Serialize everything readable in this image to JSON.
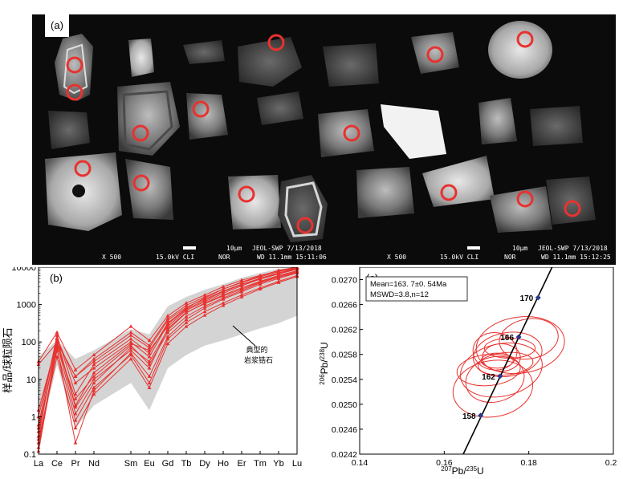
{
  "panel_a": {
    "label": "(a)",
    "footer_left": {
      "mag": "X 500",
      "kv": "15.0kV CLI",
      "scale": "10μm",
      "instrument": "JEOL-SWP 7/13/2018",
      "nor": "NOR",
      "wd": "WD 11.1mm 15:11:06"
    },
    "footer_right": {
      "mag": "X 500",
      "kv": "15.0kV CLI",
      "scale": "10μm",
      "instrument": "JEOL-SWP 7/13/2018",
      "nor": "NOR",
      "wd": "WD 11.1mm 15:12:25"
    },
    "colors": {
      "background": "#0b0b0b",
      "spot": "#e8322f"
    }
  },
  "chart_data": [
    {
      "type": "line",
      "label": "(b)",
      "ylabel": "样品/球粒陨石",
      "yscale": "log",
      "ylim": [
        0.1,
        10000
      ],
      "y_ticks": [
        "0.1",
        "1",
        "10",
        "100",
        "1000",
        "10000"
      ],
      "categories": [
        "La",
        "Ce",
        "Pr",
        "Nd",
        "Sm",
        "Eu",
        "Gd",
        "Tb",
        "Dy",
        "Ho",
        "Er",
        "Tm",
        "Yb",
        "Lu"
      ],
      "x_positions": [
        1,
        2,
        3,
        4,
        6,
        7,
        8,
        9,
        10,
        11,
        12,
        13,
        14,
        15
      ],
      "envelope": {
        "label_line1": "典型的",
        "label_line2": "岩浆锆石",
        "upper": [
          40,
          110,
          35,
          60,
          220,
          160,
          900,
          1600,
          2500,
          3500,
          5200,
          7000,
          9000,
          10000
        ],
        "lower": [
          0.2,
          25,
          0.5,
          2,
          8,
          1.5,
          20,
          45,
          80,
          110,
          160,
          230,
          320,
          500
        ]
      },
      "series": [
        {
          "values": [
            0.6,
            150,
            4,
            25,
            120,
            50,
            320,
            800,
            1500,
            2600,
            4000,
            5800,
            8200,
            10000
          ]
        },
        {
          "values": [
            0.15,
            90,
            1.2,
            8,
            70,
            30,
            210,
            600,
            1100,
            1800,
            2800,
            4200,
            6000,
            8000
          ]
        },
        {
          "values": [
            0.12,
            70,
            0.2,
            5,
            50,
            12,
            140,
            400,
            800,
            1400,
            2200,
            3500,
            5000,
            7000
          ]
        },
        {
          "values": [
            0.3,
            120,
            2,
            15,
            90,
            60,
            260,
            700,
            1200,
            2000,
            3200,
            4800,
            6600,
            8800
          ]
        },
        {
          "values": [
            30,
            180,
            18,
            45,
            260,
            110,
            500,
            1100,
            1800,
            3000,
            4500,
            6000,
            8000,
            10000
          ]
        },
        {
          "values": [
            1.5,
            100,
            12,
            30,
            150,
            70,
            380,
            850,
            1400,
            2300,
            3500,
            5000,
            7000,
            9000
          ]
        },
        {
          "values": [
            0.2,
            60,
            0.8,
            6,
            45,
            8,
            120,
            330,
            650,
            1100,
            1800,
            2800,
            4200,
            6000
          ]
        },
        {
          "values": [
            0.5,
            80,
            3,
            12,
            80,
            25,
            180,
            480,
            900,
            1500,
            2400,
            3800,
            5400,
            7200
          ]
        },
        {
          "values": [
            0.25,
            40,
            0.5,
            4,
            35,
            6,
            90,
            260,
            520,
            950,
            1600,
            2600,
            3900,
            5600
          ]
        },
        {
          "values": [
            1,
            130,
            8,
            20,
            100,
            40,
            300,
            750,
            1300,
            2200,
            3400,
            5000,
            7000,
            9500
          ]
        },
        {
          "values": [
            0.4,
            110,
            1.8,
            10,
            60,
            20,
            230,
            620,
            1050,
            1700,
            2600,
            4000,
            5700,
            7600
          ]
        },
        {
          "values": [
            25,
            95,
            12,
            35,
            180,
            80,
            420,
            950,
            1600,
            2600,
            3900,
            5500,
            7600,
            9800
          ]
        }
      ],
      "colors": {
        "series": "#e8322f",
        "envelope": "#d4d4d4"
      }
    },
    {
      "type": "scatter",
      "label": "(c)",
      "xlabel_parts": [
        "207",
        "Pb/",
        "235",
        "U"
      ],
      "ylabel_parts": [
        "206",
        "Pb/",
        "238",
        "U"
      ],
      "xlim": [
        0.14,
        0.2
      ],
      "ylim": [
        0.0242,
        0.0272
      ],
      "x_ticks": [
        "0.14",
        "0.16",
        "0.18",
        "0.20"
      ],
      "y_ticks": [
        "0.0242",
        "0.0246",
        "0.0250",
        "0.0254",
        "0.0258",
        "0.0262",
        "0.0266",
        "0.0270"
      ],
      "legend": {
        "line1": "Mean=163. 7±0. 54Ma",
        "line2": "MSWD=3.8,n=12"
      },
      "concordia_ages": [
        {
          "age": "158",
          "x": 0.1686,
          "y": 0.02482
        },
        {
          "age": "162",
          "x": 0.1732,
          "y": 0.02545
        },
        {
          "age": "166",
          "x": 0.1776,
          "y": 0.02608
        },
        {
          "age": "170",
          "x": 0.1822,
          "y": 0.02671
        }
      ],
      "concordia_line": {
        "x": [
          0.1645,
          0.1855
        ],
        "y": [
          0.0242,
          0.0272
        ]
      },
      "ellipses": [
        {
          "cx": 0.178,
          "cy": 0.02595,
          "rx": 0.0105,
          "ry": 0.00045,
          "angle": -8
        },
        {
          "cx": 0.1745,
          "cy": 0.02565,
          "rx": 0.0065,
          "ry": 0.00018,
          "angle": -5
        },
        {
          "cx": 0.1735,
          "cy": 0.02575,
          "rx": 0.0045,
          "ry": 0.00022,
          "angle": 0
        },
        {
          "cx": 0.175,
          "cy": 0.0258,
          "rx": 0.0082,
          "ry": 0.00035,
          "angle": -10
        },
        {
          "cx": 0.172,
          "cy": 0.02585,
          "rx": 0.0052,
          "ry": 0.0003,
          "angle": 5
        },
        {
          "cx": 0.1735,
          "cy": 0.02555,
          "rx": 0.0098,
          "ry": 0.00042,
          "angle": -12
        },
        {
          "cx": 0.172,
          "cy": 0.0254,
          "rx": 0.007,
          "ry": 0.00036,
          "angle": -15
        },
        {
          "cx": 0.1715,
          "cy": 0.02525,
          "rx": 0.0095,
          "ry": 0.00045,
          "angle": -10
        },
        {
          "cx": 0.1755,
          "cy": 0.0259,
          "rx": 0.006,
          "ry": 0.00016,
          "angle": 0
        },
        {
          "cx": 0.1725,
          "cy": 0.0257,
          "rx": 0.0038,
          "ry": 0.00012,
          "angle": 0
        },
        {
          "cx": 0.18,
          "cy": 0.02605,
          "rx": 0.007,
          "ry": 0.00032,
          "angle": -10
        },
        {
          "cx": 0.1705,
          "cy": 0.02555,
          "rx": 0.0075,
          "ry": 0.00025,
          "angle": -5
        }
      ],
      "colors": {
        "ellipse": "#e8322f",
        "concordia": "#000000",
        "marker": "#2b3a8f"
      }
    }
  ]
}
